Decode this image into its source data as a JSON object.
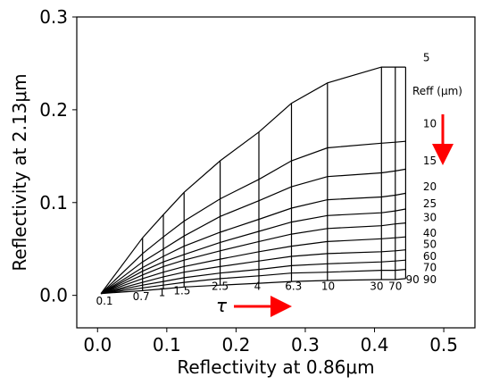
{
  "chart_data": {
    "type": "line",
    "title": "",
    "xlabel": "Reflectivity at 0.86μm",
    "ylabel": "Reflectivity at 2.13μm",
    "xlim": [
      -0.03,
      0.545
    ],
    "ylim": [
      -0.035,
      0.3
    ],
    "xticks": [
      "0.0",
      "0.1",
      "0.2",
      "0.3",
      "0.4",
      "0.5"
    ],
    "yticks": [
      "0.0",
      "0.1",
      "0.2",
      "0.3"
    ],
    "grid": false,
    "reff_title": "Reff (μm)",
    "tau_symbol": "τ",
    "tau_values": [
      "0.1",
      "0.7",
      "1",
      "1.5",
      "2.5",
      "4",
      "6.3",
      "10",
      "30",
      "70",
      "90"
    ],
    "reff_values": [
      "5",
      "10",
      "15",
      "20",
      "25",
      "30",
      "40",
      "50",
      "60",
      "70",
      "90"
    ],
    "tau_x": [
      0.005,
      0.065,
      0.095,
      0.125,
      0.177,
      0.233,
      0.28,
      0.332,
      0.41,
      0.43,
      0.445
    ],
    "reff_y": [
      [
        0.002,
        0.062,
        0.087,
        0.111,
        0.145,
        0.176,
        0.207,
        0.229,
        0.246,
        0.246,
        0.246
      ],
      [
        0.002,
        0.045,
        0.063,
        0.08,
        0.104,
        0.125,
        0.145,
        0.159,
        0.164,
        0.165,
        0.166
      ],
      [
        0.002,
        0.036,
        0.05,
        0.064,
        0.085,
        0.102,
        0.117,
        0.128,
        0.132,
        0.134,
        0.136
      ],
      [
        0.002,
        0.03,
        0.042,
        0.053,
        0.068,
        0.082,
        0.094,
        0.103,
        0.106,
        0.108,
        0.11
      ],
      [
        0.002,
        0.026,
        0.036,
        0.044,
        0.057,
        0.069,
        0.079,
        0.086,
        0.089,
        0.091,
        0.093
      ],
      [
        0.002,
        0.022,
        0.031,
        0.038,
        0.048,
        0.058,
        0.066,
        0.072,
        0.075,
        0.077,
        0.078
      ],
      [
        0.002,
        0.018,
        0.025,
        0.031,
        0.039,
        0.047,
        0.053,
        0.058,
        0.061,
        0.062,
        0.063
      ],
      [
        0.002,
        0.014,
        0.02,
        0.025,
        0.031,
        0.037,
        0.042,
        0.045,
        0.047,
        0.048,
        0.049
      ],
      [
        0.002,
        0.011,
        0.015,
        0.019,
        0.024,
        0.028,
        0.032,
        0.034,
        0.036,
        0.037,
        0.038
      ],
      [
        0.002,
        0.008,
        0.011,
        0.014,
        0.018,
        0.021,
        0.024,
        0.025,
        0.027,
        0.027,
        0.028
      ],
      [
        0.002,
        0.005,
        0.007,
        0.009,
        0.011,
        0.013,
        0.015,
        0.016,
        0.017,
        0.017,
        0.018
      ]
    ],
    "tau_label_pos": [
      [
        0.01,
        -0.01
      ],
      [
        0.063,
        -0.005
      ],
      [
        0.093,
        -0.001
      ],
      [
        0.122,
        0.001
      ],
      [
        0.177,
        0.006
      ],
      [
        0.231,
        0.006
      ],
      [
        0.283,
        0.006
      ],
      [
        0.333,
        0.006
      ],
      [
        0.403,
        0.006
      ],
      [
        0.43,
        0.006
      ],
      [
        0.455,
        0.013
      ]
    ],
    "reff_label_pos": [
      [
        0.47,
        0.256
      ],
      [
        0.47,
        0.185
      ],
      [
        0.47,
        0.145
      ],
      [
        0.47,
        0.117
      ],
      [
        0.47,
        0.099
      ],
      [
        0.47,
        0.084
      ],
      [
        0.47,
        0.067
      ],
      [
        0.47,
        0.055
      ],
      [
        0.47,
        0.042
      ],
      [
        0.47,
        0.03
      ],
      [
        0.47,
        0.017
      ]
    ],
    "arrow_color": "#ff0000",
    "line_color": "#000000"
  }
}
